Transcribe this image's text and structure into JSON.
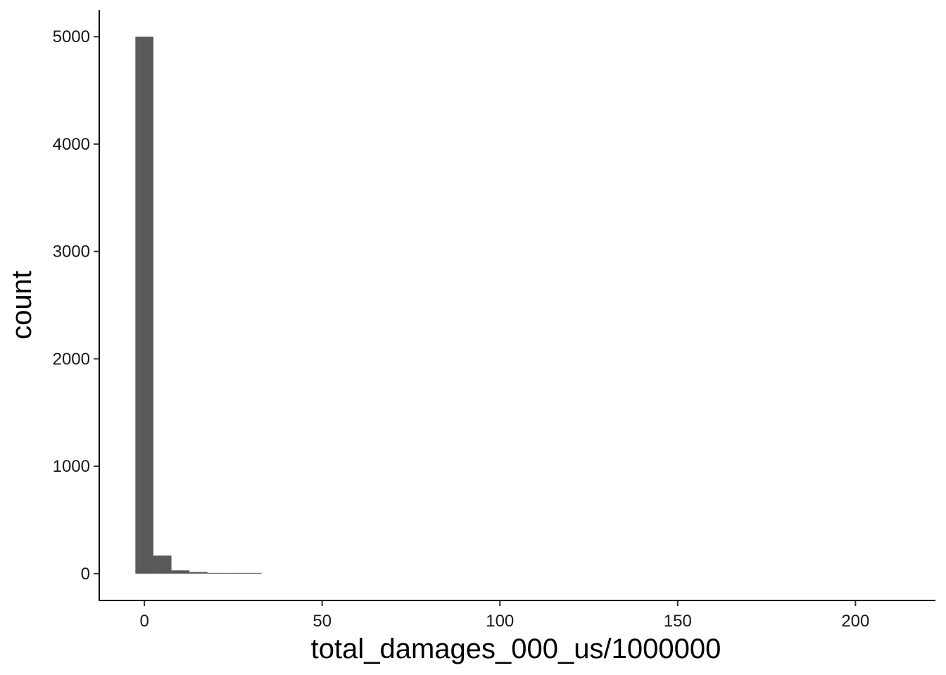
{
  "chart_data": {
    "type": "bar",
    "histogram": true,
    "bar_color": "#595959",
    "xlabel": "total_damages_000_us/1000000",
    "ylabel": "count",
    "xlim": [
      -12.7,
      222.5
    ],
    "ylim": [
      -250,
      5250
    ],
    "x_ticks": [
      0,
      50,
      100,
      150,
      200
    ],
    "x_tick_labels": [
      "0",
      "50",
      "100",
      "150",
      "200"
    ],
    "y_ticks": [
      0,
      1000,
      2000,
      3000,
      4000,
      5000
    ],
    "y_tick_labels": [
      "0",
      "1000",
      "2000",
      "3000",
      "4000",
      "5000"
    ],
    "bin_width": 5.07,
    "bins": [
      {
        "x": 0.0,
        "count": 5000
      },
      {
        "x": 5.07,
        "count": 168
      },
      {
        "x": 10.14,
        "count": 30
      },
      {
        "x": 15.21,
        "count": 15
      },
      {
        "x": 20.28,
        "count": 6
      },
      {
        "x": 25.35,
        "count": 2
      },
      {
        "x": 30.42,
        "count": 4
      }
    ],
    "grid": false,
    "legend": "none"
  }
}
